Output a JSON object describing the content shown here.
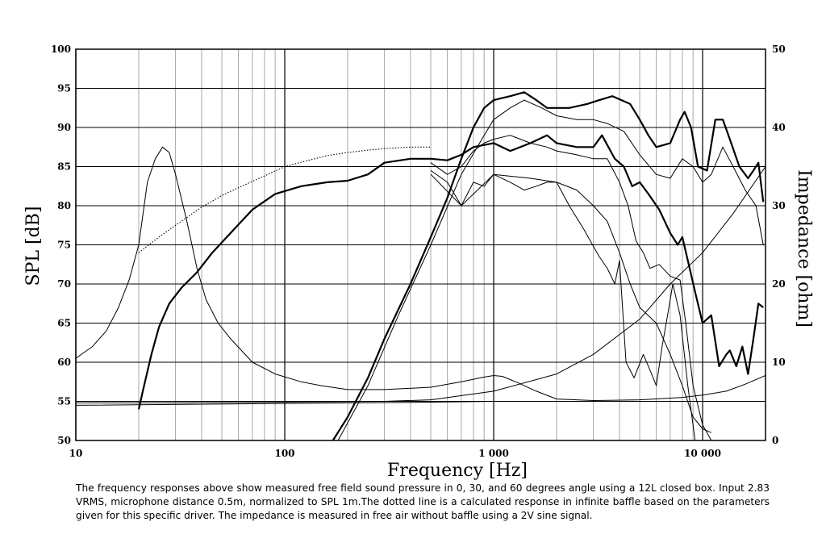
{
  "chart_data": {
    "type": "line",
    "xlabel": "Frequency [Hz]",
    "ylabel": "SPL [dB]",
    "y2label": "Impedance [ohm]",
    "xscale": "log",
    "xlim": [
      10,
      20000
    ],
    "ylim": [
      50,
      100
    ],
    "y2lim": [
      0,
      50
    ],
    "grid": true,
    "x_tick_labels": [
      {
        "value": 10,
        "label": "10"
      },
      {
        "value": 100,
        "label": "100"
      },
      {
        "value": 1000,
        "label": "1 000"
      },
      {
        "value": 10000,
        "label": "10 000"
      }
    ],
    "y_tick_labels": [
      "50",
      "55",
      "60",
      "65",
      "70",
      "75",
      "80",
      "85",
      "90",
      "95",
      "100"
    ],
    "y2_tick_labels": [
      "0",
      "10",
      "20",
      "30",
      "40",
      "50"
    ],
    "series": [
      {
        "axis": "left",
        "style": "thick",
        "points": [
          [
            20,
            54
          ],
          [
            21,
            56.5
          ],
          [
            23,
            61
          ],
          [
            25,
            64.5
          ],
          [
            28,
            67.5
          ],
          [
            32,
            69.5
          ],
          [
            38,
            71.5
          ],
          [
            45,
            74
          ],
          [
            55,
            76.5
          ],
          [
            70,
            79.5
          ],
          [
            90,
            81.5
          ],
          [
            120,
            82.5
          ],
          [
            160,
            83
          ],
          [
            200,
            83.2
          ],
          [
            250,
            84
          ],
          [
            300,
            85.5
          ],
          [
            400,
            86
          ],
          [
            500,
            86
          ],
          [
            600,
            85.8
          ],
          [
            700,
            86.5
          ],
          [
            800,
            87.5
          ],
          [
            1000,
            88
          ],
          [
            1200,
            87
          ],
          [
            1500,
            88
          ],
          [
            1800,
            89
          ],
          [
            2000,
            88
          ],
          [
            2500,
            87.5
          ],
          [
            3000,
            87.5
          ],
          [
            3300,
            89
          ],
          [
            3800,
            86
          ],
          [
            4200,
            85
          ],
          [
            4600,
            82.5
          ],
          [
            5000,
            83
          ],
          [
            5500,
            81.5
          ],
          [
            6200,
            79.5
          ],
          [
            7000,
            76.5
          ],
          [
            7600,
            75
          ],
          [
            8000,
            76
          ],
          [
            8500,
            73
          ],
          [
            9200,
            69
          ],
          [
            10000,
            65
          ],
          [
            11000,
            66
          ],
          [
            12000,
            59.5
          ],
          [
            13000,
            61
          ],
          [
            13500,
            61.5
          ],
          [
            14500,
            59.5
          ],
          [
            15500,
            62
          ],
          [
            16500,
            58.5
          ],
          [
            17500,
            63
          ],
          [
            18500,
            67.5
          ],
          [
            19500,
            67
          ]
        ]
      },
      {
        "axis": "left",
        "style": "thick",
        "points": [
          [
            170,
            50
          ],
          [
            200,
            53
          ],
          [
            250,
            58
          ],
          [
            300,
            63
          ],
          [
            400,
            70
          ],
          [
            500,
            76
          ],
          [
            600,
            81
          ],
          [
            700,
            86
          ],
          [
            800,
            90
          ],
          [
            900,
            92.5
          ],
          [
            1000,
            93.5
          ],
          [
            1200,
            94
          ],
          [
            1400,
            94.5
          ],
          [
            1600,
            93.5
          ],
          [
            1800,
            92.5
          ],
          [
            2000,
            92.5
          ],
          [
            2300,
            92.5
          ],
          [
            2800,
            93
          ],
          [
            3200,
            93.5
          ],
          [
            3700,
            94
          ],
          [
            4500,
            93
          ],
          [
            5000,
            91
          ],
          [
            5500,
            89
          ],
          [
            6000,
            87.5
          ],
          [
            7000,
            88
          ],
          [
            7800,
            91
          ],
          [
            8200,
            92
          ],
          [
            8800,
            90
          ],
          [
            9500,
            85
          ],
          [
            10500,
            84.5
          ],
          [
            11500,
            91
          ],
          [
            12500,
            91
          ],
          [
            13500,
            88.5
          ],
          [
            15000,
            85
          ],
          [
            16500,
            83.5
          ],
          [
            17500,
            84.5
          ],
          [
            18500,
            85.5
          ],
          [
            19500,
            80.5
          ]
        ]
      },
      {
        "axis": "left",
        "style": "thin",
        "points": [
          [
            180,
            50
          ],
          [
            250,
            57
          ],
          [
            350,
            66
          ],
          [
            500,
            75
          ],
          [
            700,
            84
          ],
          [
            900,
            89
          ],
          [
            1000,
            91
          ],
          [
            1200,
            92.5
          ],
          [
            1400,
            93.5
          ],
          [
            1700,
            92.5
          ],
          [
            2000,
            91.5
          ],
          [
            2500,
            91
          ],
          [
            3000,
            91
          ],
          [
            3500,
            90.5
          ],
          [
            4200,
            89.5
          ],
          [
            5000,
            86.5
          ],
          [
            6000,
            84
          ],
          [
            7000,
            83.5
          ],
          [
            8000,
            86
          ],
          [
            9000,
            85
          ],
          [
            10000,
            83
          ],
          [
            11000,
            84
          ],
          [
            12500,
            87.5
          ],
          [
            14000,
            85
          ],
          [
            16000,
            82
          ],
          [
            18000,
            80
          ],
          [
            19500,
            75
          ]
        ]
      },
      {
        "axis": "left",
        "style": "thin",
        "points": [
          [
            500,
            85.5
          ],
          [
            600,
            84
          ],
          [
            700,
            85
          ],
          [
            800,
            87
          ],
          [
            900,
            88
          ],
          [
            1000,
            88.5
          ],
          [
            1200,
            89
          ],
          [
            1500,
            88
          ],
          [
            1800,
            87.5
          ],
          [
            2000,
            87
          ],
          [
            2500,
            86.5
          ],
          [
            3000,
            86
          ],
          [
            3500,
            86
          ],
          [
            4000,
            83
          ],
          [
            4400,
            80
          ],
          [
            4800,
            75.5
          ],
          [
            5200,
            74
          ],
          [
            5600,
            72
          ],
          [
            6200,
            72.5
          ],
          [
            7000,
            71
          ],
          [
            7800,
            70.5
          ],
          [
            8300,
            65
          ],
          [
            9000,
            57
          ],
          [
            10000,
            52
          ],
          [
            11000,
            50
          ]
        ]
      },
      {
        "axis": "left",
        "style": "thin",
        "points": [
          [
            500,
            84.5
          ],
          [
            600,
            83
          ],
          [
            700,
            80
          ],
          [
            800,
            83
          ],
          [
            900,
            82.5
          ],
          [
            1000,
            84
          ],
          [
            1200,
            83
          ],
          [
            1400,
            82
          ],
          [
            1600,
            82.5
          ],
          [
            1800,
            83
          ],
          [
            2000,
            83
          ],
          [
            2300,
            80
          ],
          [
            2700,
            77
          ],
          [
            3200,
            73.5
          ],
          [
            3500,
            72
          ],
          [
            3800,
            70
          ],
          [
            4000,
            73
          ],
          [
            4300,
            60
          ],
          [
            4700,
            58
          ],
          [
            5200,
            61
          ],
          [
            5600,
            59
          ],
          [
            6000,
            57
          ],
          [
            6400,
            62
          ],
          [
            6800,
            66
          ],
          [
            7200,
            70
          ],
          [
            7800,
            66
          ],
          [
            8500,
            57
          ],
          [
            9200,
            50
          ]
        ]
      },
      {
        "axis": "left",
        "style": "thin",
        "points": [
          [
            500,
            84
          ],
          [
            700,
            80
          ],
          [
            1000,
            84
          ],
          [
            1500,
            83.5
          ],
          [
            2000,
            83
          ],
          [
            2500,
            82
          ],
          [
            3000,
            80
          ],
          [
            3500,
            78
          ],
          [
            4000,
            74
          ],
          [
            4500,
            70
          ],
          [
            5000,
            67
          ],
          [
            6000,
            65
          ],
          [
            7000,
            61
          ],
          [
            8000,
            57
          ],
          [
            9000,
            53
          ],
          [
            10000,
            51.5
          ],
          [
            11000,
            51
          ]
        ]
      },
      {
        "axis": "left",
        "style": "dotted",
        "points": [
          [
            20,
            74
          ],
          [
            25,
            76
          ],
          [
            30,
            77.5
          ],
          [
            40,
            79.8
          ],
          [
            50,
            81.3
          ],
          [
            60,
            82.3
          ],
          [
            80,
            83.8
          ],
          [
            100,
            85
          ],
          [
            130,
            85.8
          ],
          [
            160,
            86.4
          ],
          [
            200,
            86.8
          ],
          [
            250,
            87.1
          ],
          [
            300,
            87.3
          ],
          [
            400,
            87.5
          ],
          [
            500,
            87.5
          ]
        ]
      },
      {
        "axis": "right",
        "style": "thin",
        "points": [
          [
            10,
            10.5
          ],
          [
            12,
            12
          ],
          [
            14,
            14
          ],
          [
            16,
            17
          ],
          [
            18,
            20.5
          ],
          [
            20,
            25
          ],
          [
            22,
            33
          ],
          [
            24,
            36
          ],
          [
            26,
            37.5
          ],
          [
            28,
            36.8
          ],
          [
            30,
            34
          ],
          [
            34,
            28
          ],
          [
            38,
            22
          ],
          [
            42,
            18
          ],
          [
            48,
            15
          ],
          [
            55,
            13
          ],
          [
            70,
            10
          ],
          [
            90,
            8.5
          ],
          [
            120,
            7.5
          ],
          [
            150,
            7
          ],
          [
            200,
            6.5
          ],
          [
            300,
            6.5
          ],
          [
            500,
            6.8
          ],
          [
            700,
            7.5
          ],
          [
            900,
            8.1
          ],
          [
            1000,
            8.3
          ],
          [
            1100,
            8.2
          ],
          [
            1300,
            7.4
          ],
          [
            1600,
            6.3
          ],
          [
            2000,
            5.3
          ],
          [
            3000,
            5.1
          ],
          [
            5000,
            5.2
          ],
          [
            8000,
            5.5
          ],
          [
            10000,
            5.8
          ],
          [
            13000,
            6.3
          ],
          [
            16000,
            7.2
          ],
          [
            20000,
            8.3
          ]
        ]
      },
      {
        "axis": "right",
        "style": "thin",
        "points": [
          [
            10,
            4.8
          ],
          [
            30,
            4.8
          ],
          [
            100,
            4.9
          ],
          [
            300,
            5
          ],
          [
            500,
            5.2
          ],
          [
            1000,
            6.3
          ],
          [
            2000,
            8.5
          ],
          [
            3000,
            11
          ],
          [
            5000,
            15.5
          ],
          [
            7000,
            20
          ],
          [
            10000,
            24
          ],
          [
            14000,
            29
          ],
          [
            20000,
            35
          ]
        ]
      },
      {
        "axis": "right",
        "style": "thin",
        "points": [
          [
            10,
            4.5
          ],
          [
            200,
            4.8
          ],
          [
            500,
            4.9
          ],
          [
            1000,
            5
          ],
          [
            5000,
            5
          ],
          [
            20000,
            5
          ]
        ]
      }
    ],
    "caption": "The frequency responses above show measured free field sound pressure in 0, 30, and 60 degrees angle using a 12L closed box. Input 2.83 VRMS, microphone distance 0.5m, normalized to SPL 1m.The dotted line is a calculated response in infinite baffle based on the parameters given for this specific driver. The impedance is measured in free air without baffle using a 2V sine signal."
  }
}
